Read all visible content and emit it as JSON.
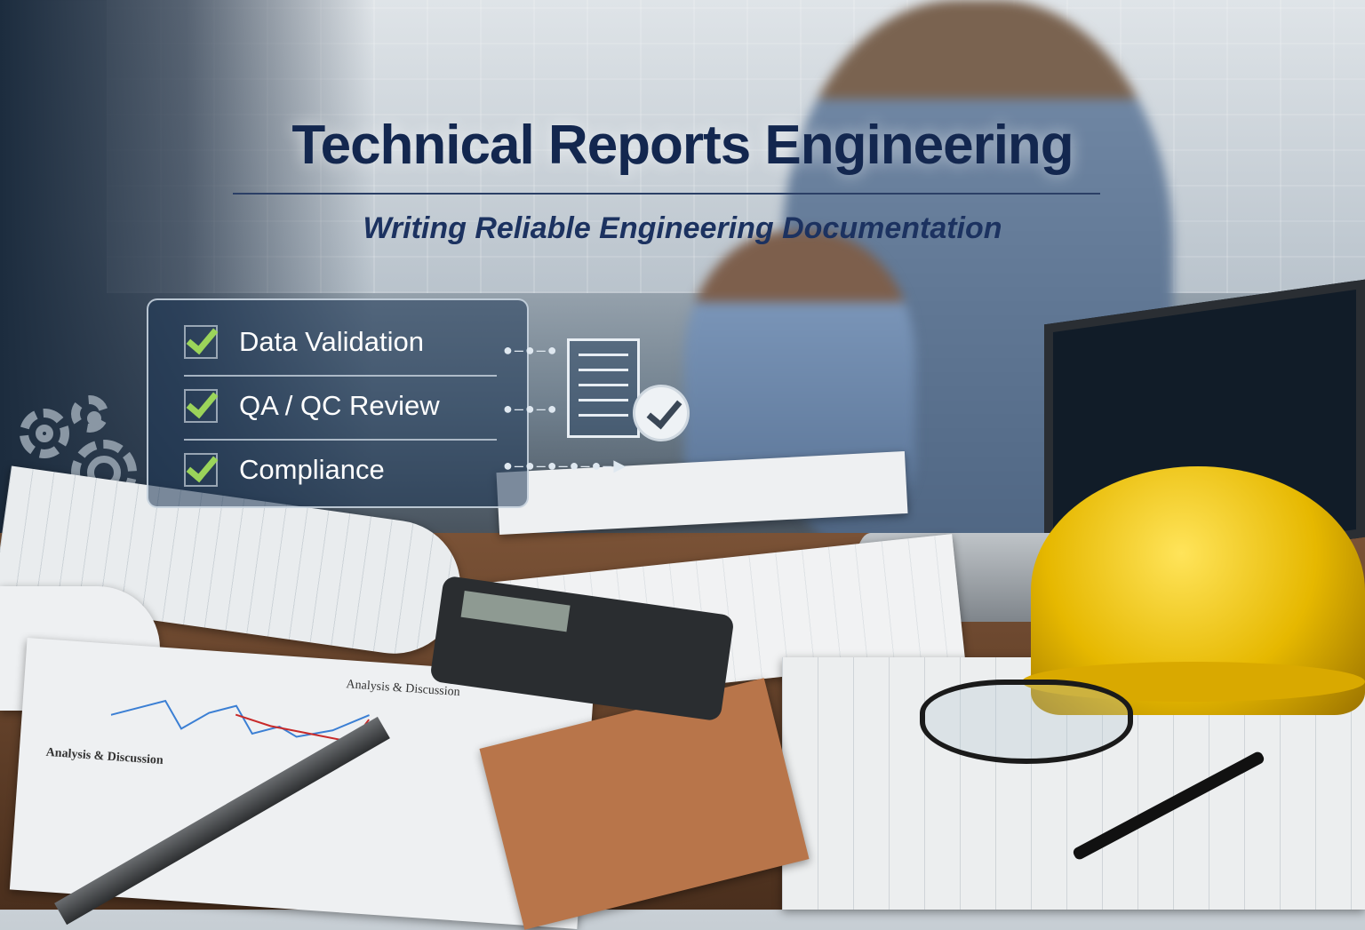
{
  "header": {
    "title": "Technical Reports Engineering",
    "subtitle": "Writing Reliable Engineering Documentation"
  },
  "checklist": {
    "items": [
      {
        "label": "Data Validation",
        "checked": true
      },
      {
        "label": "QA / QC Review",
        "checked": true
      },
      {
        "label": "Compliance",
        "checked": true
      }
    ],
    "check_color": "#9bd45a"
  },
  "desk_documents": {
    "report_heading": "Analysis & Discussion",
    "report_heading_2": "Analysis & Discussion"
  },
  "colors": {
    "title": "#13274f",
    "hardhat": "#f2c500"
  },
  "icons": [
    "check-icon",
    "document-check-icon",
    "gear-icon"
  ]
}
